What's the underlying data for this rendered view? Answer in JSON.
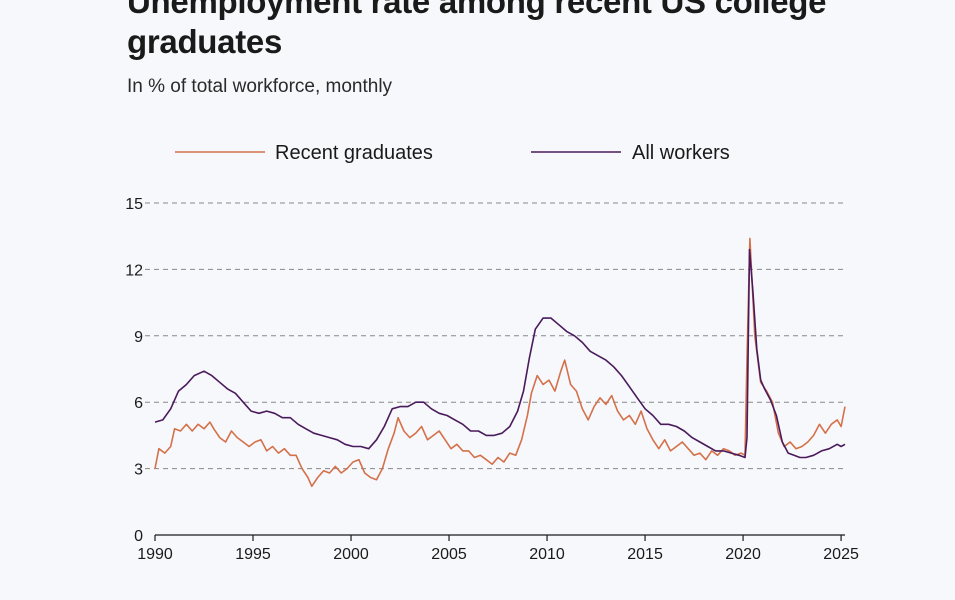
{
  "title": "Unemployment rate among recent US college graduates",
  "subtitle": "In % of total workforce, monthly",
  "colors": {
    "recent_graduates": "#d4714a",
    "all_workers": "#4a1a5c",
    "grid": "#888888",
    "background": "#f6f8fb"
  },
  "chart_data": {
    "type": "line",
    "title": "Unemployment rate among recent US college graduates",
    "subtitle": "In % of total workforce, monthly",
    "xlabel": "",
    "ylabel": "",
    "xlim": [
      1990,
      2025.2
    ],
    "ylim": [
      0,
      15
    ],
    "x_ticks": [
      "1990",
      "1995",
      "2000",
      "2005",
      "2010",
      "2015",
      "2020",
      "2025"
    ],
    "y_ticks": [
      "0",
      "3",
      "6",
      "9",
      "12",
      "15"
    ],
    "grid": "horizontal dashed",
    "legend": "top",
    "series": [
      {
        "name": "Recent graduates",
        "points": [
          [
            1990.0,
            3.0
          ],
          [
            1990.2,
            3.9
          ],
          [
            1990.5,
            3.7
          ],
          [
            1990.8,
            4.0
          ],
          [
            1991.0,
            4.8
          ],
          [
            1991.3,
            4.7
          ],
          [
            1991.6,
            5.0
          ],
          [
            1991.9,
            4.7
          ],
          [
            1992.2,
            5.0
          ],
          [
            1992.5,
            4.8
          ],
          [
            1992.8,
            5.1
          ],
          [
            1993.0,
            4.8
          ],
          [
            1993.3,
            4.4
          ],
          [
            1993.6,
            4.2
          ],
          [
            1993.9,
            4.7
          ],
          [
            1994.2,
            4.4
          ],
          [
            1994.5,
            4.2
          ],
          [
            1994.8,
            4.0
          ],
          [
            1995.1,
            4.2
          ],
          [
            1995.4,
            4.3
          ],
          [
            1995.7,
            3.8
          ],
          [
            1996.0,
            4.0
          ],
          [
            1996.3,
            3.7
          ],
          [
            1996.6,
            3.9
          ],
          [
            1996.9,
            3.6
          ],
          [
            1997.2,
            3.6
          ],
          [
            1997.5,
            3.0
          ],
          [
            1997.8,
            2.6
          ],
          [
            1998.0,
            2.2
          ],
          [
            1998.3,
            2.6
          ],
          [
            1998.6,
            2.9
          ],
          [
            1998.9,
            2.8
          ],
          [
            1999.2,
            3.1
          ],
          [
            1999.5,
            2.8
          ],
          [
            1999.8,
            3.0
          ],
          [
            2000.1,
            3.3
          ],
          [
            2000.4,
            3.4
          ],
          [
            2000.7,
            2.8
          ],
          [
            2001.0,
            2.6
          ],
          [
            2001.3,
            2.5
          ],
          [
            2001.6,
            3.0
          ],
          [
            2001.9,
            3.9
          ],
          [
            2002.2,
            4.6
          ],
          [
            2002.4,
            5.3
          ],
          [
            2002.7,
            4.7
          ],
          [
            2003.0,
            4.4
          ],
          [
            2003.3,
            4.6
          ],
          [
            2003.6,
            4.9
          ],
          [
            2003.9,
            4.3
          ],
          [
            2004.2,
            4.5
          ],
          [
            2004.5,
            4.7
          ],
          [
            2004.8,
            4.3
          ],
          [
            2005.1,
            3.9
          ],
          [
            2005.4,
            4.1
          ],
          [
            2005.7,
            3.8
          ],
          [
            2006.0,
            3.8
          ],
          [
            2006.3,
            3.5
          ],
          [
            2006.6,
            3.6
          ],
          [
            2006.9,
            3.4
          ],
          [
            2007.2,
            3.2
          ],
          [
            2007.5,
            3.5
          ],
          [
            2007.8,
            3.3
          ],
          [
            2008.1,
            3.7
          ],
          [
            2008.4,
            3.6
          ],
          [
            2008.7,
            4.3
          ],
          [
            2009.0,
            5.4
          ],
          [
            2009.2,
            6.4
          ],
          [
            2009.5,
            7.2
          ],
          [
            2009.8,
            6.8
          ],
          [
            2010.1,
            7.0
          ],
          [
            2010.4,
            6.5
          ],
          [
            2010.7,
            7.4
          ],
          [
            2010.9,
            7.9
          ],
          [
            2011.2,
            6.8
          ],
          [
            2011.5,
            6.5
          ],
          [
            2011.8,
            5.7
          ],
          [
            2012.1,
            5.2
          ],
          [
            2012.4,
            5.8
          ],
          [
            2012.7,
            6.2
          ],
          [
            2013.0,
            5.9
          ],
          [
            2013.3,
            6.3
          ],
          [
            2013.6,
            5.6
          ],
          [
            2013.9,
            5.2
          ],
          [
            2014.2,
            5.4
          ],
          [
            2014.5,
            5.0
          ],
          [
            2014.8,
            5.6
          ],
          [
            2015.1,
            4.8
          ],
          [
            2015.4,
            4.3
          ],
          [
            2015.7,
            3.9
          ],
          [
            2016.0,
            4.3
          ],
          [
            2016.3,
            3.8
          ],
          [
            2016.6,
            4.0
          ],
          [
            2016.9,
            4.2
          ],
          [
            2017.2,
            3.9
          ],
          [
            2017.5,
            3.6
          ],
          [
            2017.8,
            3.7
          ],
          [
            2018.1,
            3.4
          ],
          [
            2018.4,
            3.8
          ],
          [
            2018.7,
            3.6
          ],
          [
            2019.0,
            3.9
          ],
          [
            2019.3,
            3.8
          ],
          [
            2019.6,
            3.6
          ],
          [
            2019.9,
            3.7
          ],
          [
            2020.1,
            3.6
          ],
          [
            2020.2,
            8.0
          ],
          [
            2020.35,
            13.4
          ],
          [
            2020.6,
            9.0
          ],
          [
            2020.9,
            6.9
          ],
          [
            2021.2,
            6.5
          ],
          [
            2021.5,
            6.0
          ],
          [
            2021.8,
            4.6
          ],
          [
            2022.1,
            4.0
          ],
          [
            2022.4,
            4.2
          ],
          [
            2022.7,
            3.9
          ],
          [
            2023.0,
            4.0
          ],
          [
            2023.3,
            4.2
          ],
          [
            2023.6,
            4.5
          ],
          [
            2023.9,
            5.0
          ],
          [
            2024.2,
            4.6
          ],
          [
            2024.5,
            5.0
          ],
          [
            2024.8,
            5.2
          ],
          [
            2025.0,
            4.9
          ],
          [
            2025.2,
            5.8
          ]
        ]
      },
      {
        "name": "All workers",
        "points": [
          [
            1990.0,
            5.1
          ],
          [
            1990.4,
            5.2
          ],
          [
            1990.8,
            5.7
          ],
          [
            1991.2,
            6.5
          ],
          [
            1991.6,
            6.8
          ],
          [
            1992.0,
            7.2
          ],
          [
            1992.5,
            7.4
          ],
          [
            1992.9,
            7.2
          ],
          [
            1993.3,
            6.9
          ],
          [
            1993.7,
            6.6
          ],
          [
            1994.1,
            6.4
          ],
          [
            1994.5,
            6.0
          ],
          [
            1994.9,
            5.6
          ],
          [
            1995.3,
            5.5
          ],
          [
            1995.7,
            5.6
          ],
          [
            1996.1,
            5.5
          ],
          [
            1996.5,
            5.3
          ],
          [
            1996.9,
            5.3
          ],
          [
            1997.3,
            5.0
          ],
          [
            1997.7,
            4.8
          ],
          [
            1998.1,
            4.6
          ],
          [
            1998.5,
            4.5
          ],
          [
            1998.9,
            4.4
          ],
          [
            1999.3,
            4.3
          ],
          [
            1999.7,
            4.1
          ],
          [
            2000.1,
            4.0
          ],
          [
            2000.5,
            4.0
          ],
          [
            2000.9,
            3.9
          ],
          [
            2001.3,
            4.3
          ],
          [
            2001.7,
            4.9
          ],
          [
            2002.1,
            5.7
          ],
          [
            2002.5,
            5.8
          ],
          [
            2002.9,
            5.8
          ],
          [
            2003.3,
            6.0
          ],
          [
            2003.7,
            6.0
          ],
          [
            2004.1,
            5.7
          ],
          [
            2004.5,
            5.5
          ],
          [
            2004.9,
            5.4
          ],
          [
            2005.3,
            5.2
          ],
          [
            2005.7,
            5.0
          ],
          [
            2006.1,
            4.7
          ],
          [
            2006.5,
            4.7
          ],
          [
            2006.9,
            4.5
          ],
          [
            2007.3,
            4.5
          ],
          [
            2007.7,
            4.6
          ],
          [
            2008.1,
            4.9
          ],
          [
            2008.5,
            5.6
          ],
          [
            2008.8,
            6.5
          ],
          [
            2009.1,
            8.0
          ],
          [
            2009.4,
            9.3
          ],
          [
            2009.8,
            9.8
          ],
          [
            2010.2,
            9.8
          ],
          [
            2010.6,
            9.5
          ],
          [
            2011.0,
            9.2
          ],
          [
            2011.4,
            9.0
          ],
          [
            2011.8,
            8.7
          ],
          [
            2012.2,
            8.3
          ],
          [
            2012.6,
            8.1
          ],
          [
            2013.0,
            7.9
          ],
          [
            2013.4,
            7.6
          ],
          [
            2013.8,
            7.2
          ],
          [
            2014.2,
            6.7
          ],
          [
            2014.6,
            6.2
          ],
          [
            2015.0,
            5.7
          ],
          [
            2015.4,
            5.4
          ],
          [
            2015.8,
            5.0
          ],
          [
            2016.2,
            5.0
          ],
          [
            2016.6,
            4.9
          ],
          [
            2017.0,
            4.7
          ],
          [
            2017.4,
            4.4
          ],
          [
            2017.8,
            4.2
          ],
          [
            2018.2,
            4.0
          ],
          [
            2018.6,
            3.8
          ],
          [
            2019.0,
            3.8
          ],
          [
            2019.4,
            3.7
          ],
          [
            2019.8,
            3.6
          ],
          [
            2020.1,
            3.5
          ],
          [
            2020.2,
            4.4
          ],
          [
            2020.33,
            12.9
          ],
          [
            2020.5,
            11.0
          ],
          [
            2020.7,
            8.4
          ],
          [
            2020.9,
            7.0
          ],
          [
            2021.1,
            6.6
          ],
          [
            2021.4,
            6.1
          ],
          [
            2021.7,
            5.4
          ],
          [
            2022.0,
            4.2
          ],
          [
            2022.3,
            3.7
          ],
          [
            2022.6,
            3.6
          ],
          [
            2022.9,
            3.5
          ],
          [
            2023.2,
            3.5
          ],
          [
            2023.6,
            3.6
          ],
          [
            2024.0,
            3.8
          ],
          [
            2024.4,
            3.9
          ],
          [
            2024.8,
            4.1
          ],
          [
            2025.0,
            4.0
          ],
          [
            2025.2,
            4.1
          ]
        ]
      }
    ]
  }
}
